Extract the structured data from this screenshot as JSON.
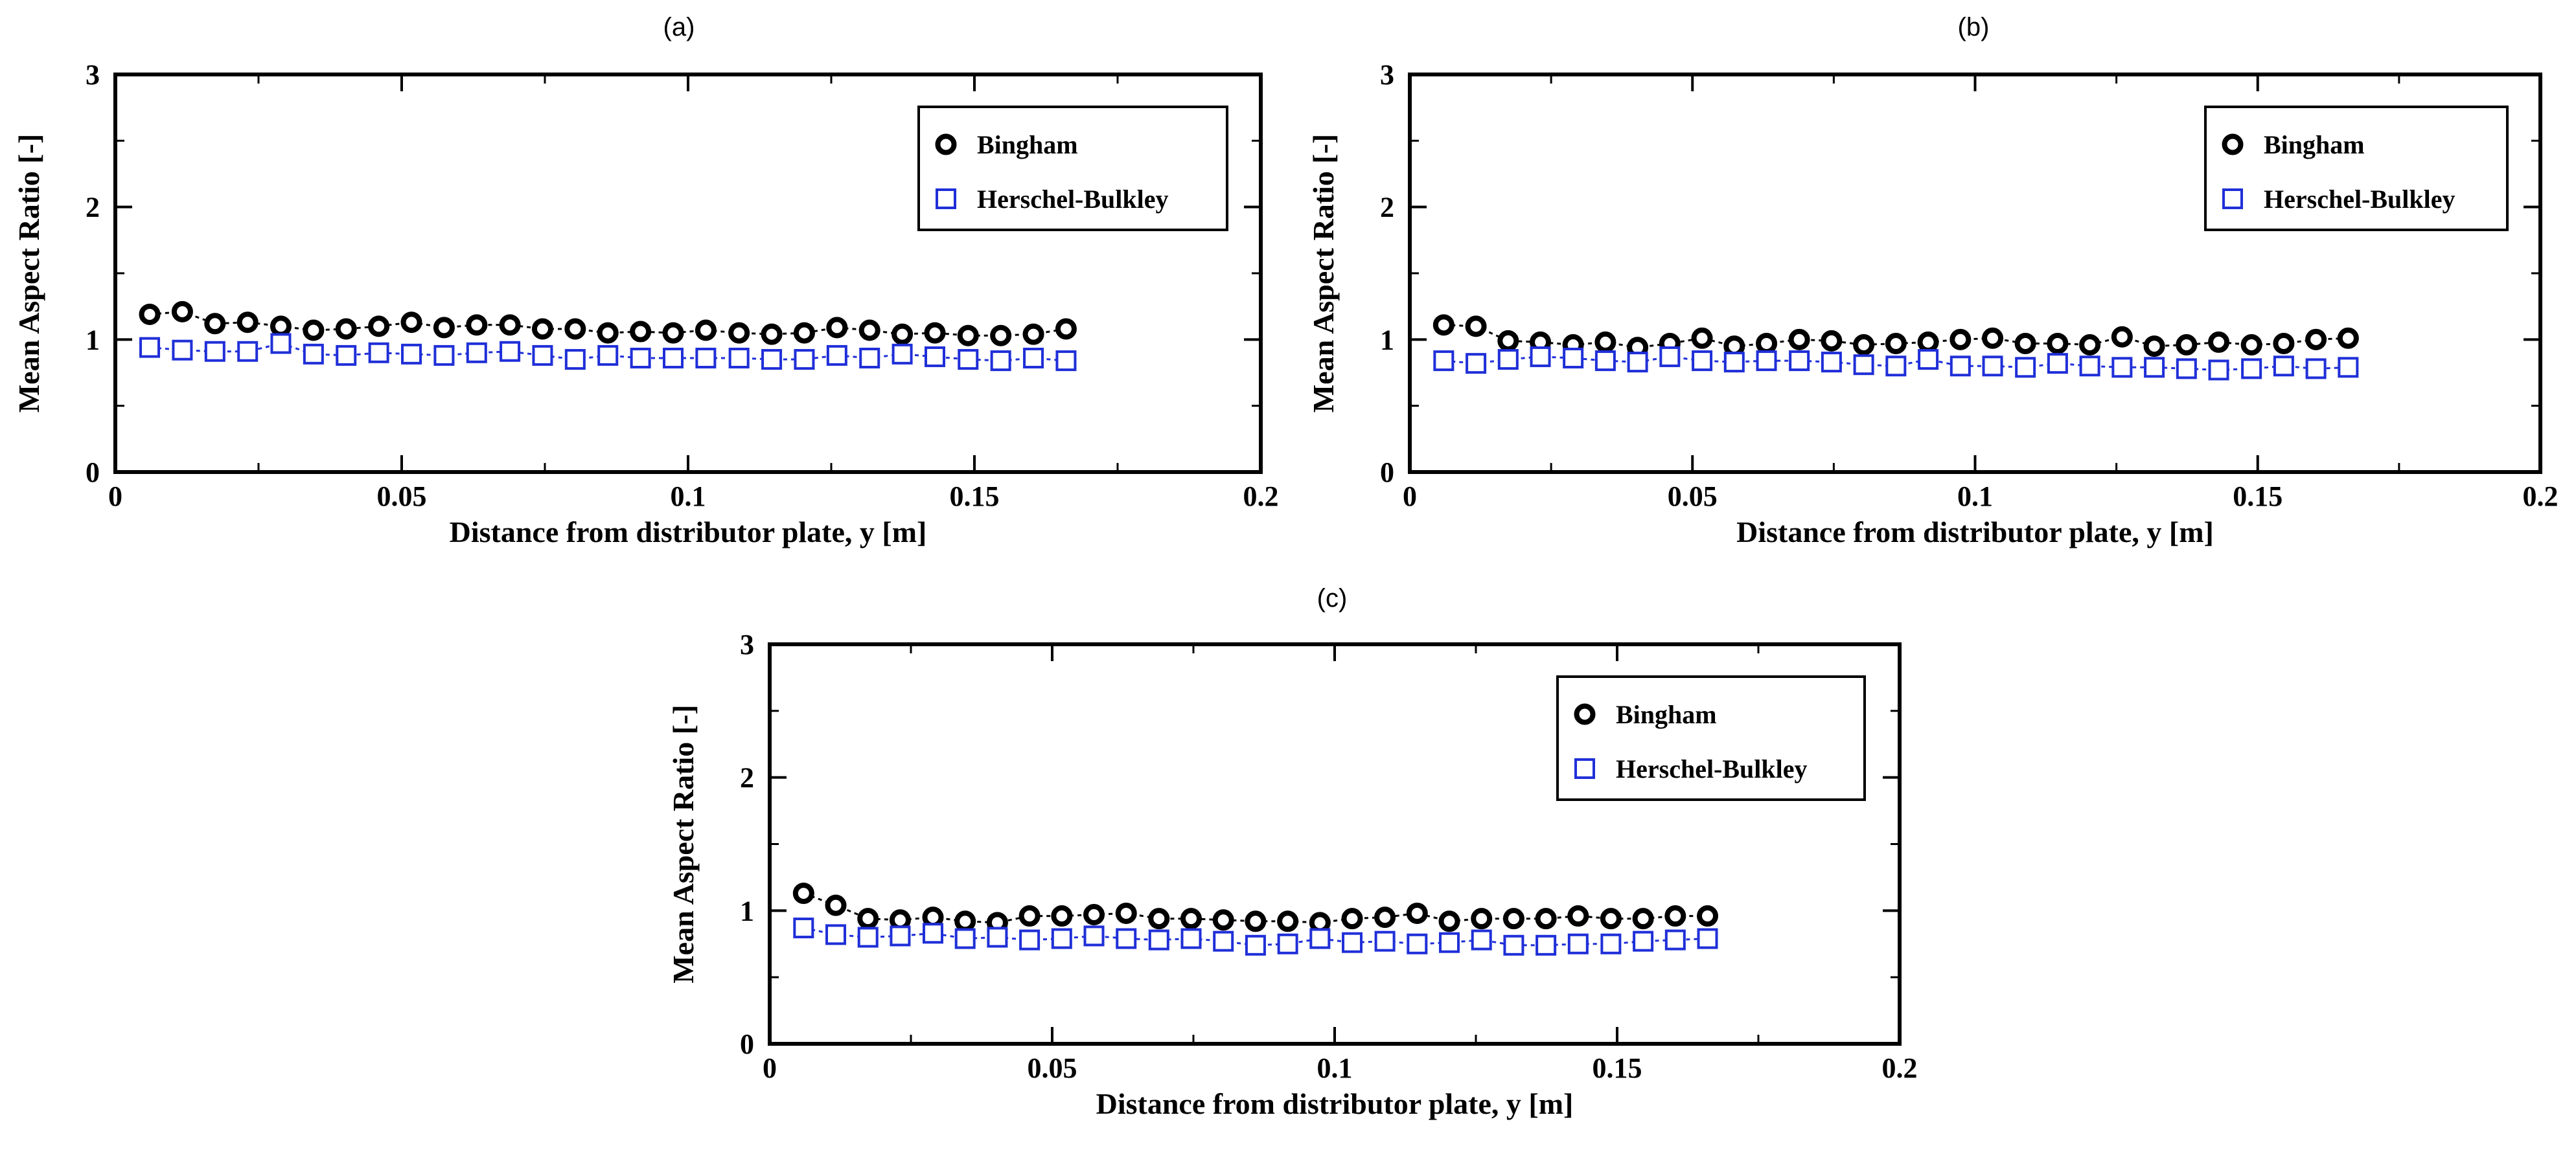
{
  "chart_data": [
    {
      "panel": "(a)",
      "type": "scatter",
      "xlabel": "Distance from distributor plate, y [m]",
      "ylabel": "Mean Aspect Ratio [-]",
      "xlim": [
        0,
        0.2
      ],
      "ylim": [
        0,
        3
      ],
      "xticks": [
        "0",
        "0.05",
        "0.1",
        "0.15",
        "0.2"
      ],
      "yticks": [
        "0",
        "1",
        "2",
        "3"
      ],
      "legend_position": "top-right",
      "x": [
        0.006,
        0.0117,
        0.0174,
        0.0231,
        0.0289,
        0.0346,
        0.0403,
        0.046,
        0.0517,
        0.0574,
        0.0631,
        0.0689,
        0.0746,
        0.0803,
        0.086,
        0.0917,
        0.0974,
        0.1031,
        0.1089,
        0.1146,
        0.1203,
        0.126,
        0.1317,
        0.1374,
        0.1431,
        0.1489,
        0.1546,
        0.1603,
        0.166
      ],
      "series": [
        {
          "name": "Bingham",
          "color": "#000000",
          "marker": "circle",
          "values": [
            1.19,
            1.21,
            1.12,
            1.13,
            1.1,
            1.07,
            1.08,
            1.1,
            1.13,
            1.09,
            1.11,
            1.11,
            1.08,
            1.08,
            1.05,
            1.06,
            1.05,
            1.07,
            1.05,
            1.04,
            1.05,
            1.09,
            1.07,
            1.04,
            1.05,
            1.03,
            1.03,
            1.04,
            1.08
          ]
        },
        {
          "name": "Herschel-Bulkley",
          "color": "#1f2fd8",
          "marker": "square",
          "values": [
            0.94,
            0.92,
            0.91,
            0.91,
            0.97,
            0.89,
            0.88,
            0.9,
            0.89,
            0.88,
            0.9,
            0.91,
            0.88,
            0.85,
            0.88,
            0.86,
            0.86,
            0.86,
            0.86,
            0.85,
            0.85,
            0.88,
            0.86,
            0.89,
            0.87,
            0.85,
            0.84,
            0.86,
            0.84
          ]
        }
      ]
    },
    {
      "panel": "(b)",
      "type": "scatter",
      "xlabel": "Distance from distributor plate, y [m]",
      "ylabel": "Mean Aspect Ratio [-]",
      "xlim": [
        0,
        0.2
      ],
      "ylim": [
        0,
        3
      ],
      "xticks": [
        "0",
        "0.05",
        "0.1",
        "0.15",
        "0.2"
      ],
      "yticks": [
        "0",
        "1",
        "2",
        "3"
      ],
      "legend_position": "top-right",
      "x": [
        0.006,
        0.0117,
        0.0174,
        0.0231,
        0.0289,
        0.0346,
        0.0403,
        0.046,
        0.0517,
        0.0574,
        0.0631,
        0.0689,
        0.0746,
        0.0803,
        0.086,
        0.0917,
        0.0974,
        0.1031,
        0.1089,
        0.1146,
        0.1203,
        0.126,
        0.1317,
        0.1374,
        0.1431,
        0.1489,
        0.1546,
        0.1603,
        0.166
      ],
      "series": [
        {
          "name": "Bingham",
          "color": "#000000",
          "marker": "circle",
          "values": [
            1.11,
            1.1,
            0.99,
            0.98,
            0.96,
            0.98,
            0.94,
            0.97,
            1.01,
            0.95,
            0.97,
            1.0,
            0.99,
            0.96,
            0.97,
            0.98,
            1.0,
            1.01,
            0.97,
            0.97,
            0.96,
            1.02,
            0.95,
            0.96,
            0.98,
            0.96,
            0.97,
            1.0,
            1.01
          ]
        },
        {
          "name": "Herschel-Bulkley",
          "color": "#1f2fd8",
          "marker": "square",
          "values": [
            0.84,
            0.82,
            0.85,
            0.87,
            0.86,
            0.84,
            0.83,
            0.87,
            0.84,
            0.83,
            0.84,
            0.84,
            0.83,
            0.81,
            0.8,
            0.85,
            0.8,
            0.8,
            0.79,
            0.82,
            0.8,
            0.79,
            0.79,
            0.78,
            0.77,
            0.78,
            0.8,
            0.78,
            0.79
          ]
        }
      ]
    },
    {
      "panel": "(c)",
      "type": "scatter",
      "xlabel": "Distance from distributor plate, y [m]",
      "ylabel": "Mean Aspect Ratio [-]",
      "xlim": [
        0,
        0.2
      ],
      "ylim": [
        0,
        3
      ],
      "xticks": [
        "0",
        "0.05",
        "0.1",
        "0.15",
        "0.2"
      ],
      "yticks": [
        "0",
        "1",
        "2",
        "3"
      ],
      "legend_position": "top-right",
      "x": [
        0.006,
        0.0117,
        0.0174,
        0.0231,
        0.0289,
        0.0346,
        0.0403,
        0.046,
        0.0517,
        0.0574,
        0.0631,
        0.0689,
        0.0746,
        0.0803,
        0.086,
        0.0917,
        0.0974,
        0.1031,
        0.1089,
        0.1146,
        0.1203,
        0.126,
        0.1317,
        0.1374,
        0.1431,
        0.1489,
        0.1546,
        0.1603,
        0.166
      ],
      "series": [
        {
          "name": "Bingham",
          "color": "#000000",
          "marker": "circle",
          "values": [
            1.13,
            1.04,
            0.94,
            0.93,
            0.95,
            0.92,
            0.91,
            0.96,
            0.96,
            0.97,
            0.98,
            0.94,
            0.94,
            0.93,
            0.92,
            0.92,
            0.91,
            0.94,
            0.95,
            0.98,
            0.92,
            0.94,
            0.94,
            0.94,
            0.96,
            0.94,
            0.94,
            0.96,
            0.96
          ]
        },
        {
          "name": "Herschel-Bulkley",
          "color": "#1f2fd8",
          "marker": "square",
          "values": [
            0.87,
            0.82,
            0.8,
            0.81,
            0.83,
            0.79,
            0.8,
            0.78,
            0.79,
            0.81,
            0.79,
            0.78,
            0.79,
            0.77,
            0.74,
            0.75,
            0.79,
            0.76,
            0.77,
            0.75,
            0.76,
            0.78,
            0.74,
            0.74,
            0.75,
            0.75,
            0.77,
            0.78,
            0.79
          ]
        }
      ]
    }
  ]
}
